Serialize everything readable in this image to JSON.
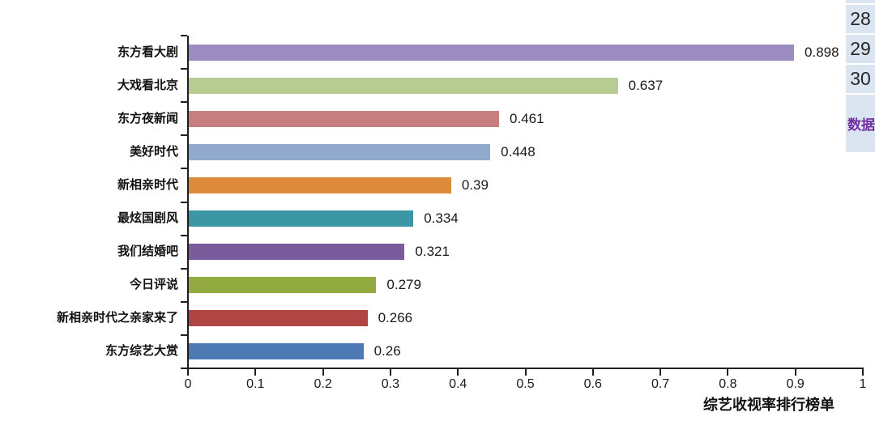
{
  "chart_data": {
    "type": "bar",
    "orientation": "horizontal",
    "title": "",
    "xlabel": "综艺收视率排行榜单",
    "ylabel": "",
    "categories": [
      "东方看大剧",
      "大戏看北京",
      "东方夜新闻",
      "美好时代",
      "新相亲时代",
      "最炫国剧风",
      "我们结婚吧",
      "今日评说",
      "新相亲时代之亲家来了",
      "东方综艺大赏"
    ],
    "values": [
      0.898,
      0.637,
      0.461,
      0.448,
      0.39,
      0.334,
      0.321,
      0.279,
      0.266,
      0.26
    ],
    "value_labels": [
      "0.898",
      "0.637",
      "0.461",
      "0.448",
      "0.39",
      "0.334",
      "0.321",
      "0.279",
      "0.266",
      "0.26"
    ],
    "bar_colors": [
      "#9c8dc0",
      "#b7cb92",
      "#c87d7f",
      "#92a9ce",
      "#dd8b38",
      "#3c97a4",
      "#7a5b9c",
      "#93aa41",
      "#b04544",
      "#4d79b4"
    ],
    "xlim": [
      0,
      1
    ],
    "x_ticks": [
      "0",
      "0.1",
      "0.2",
      "0.3",
      "0.4",
      "0.5",
      "0.6",
      "0.7",
      "0.8",
      "0.9",
      "1"
    ],
    "grid": false,
    "legend": false,
    "axis_color": "#1f1f1f",
    "text_color": "#1a1a1a"
  },
  "spreadsheet": {
    "row_numbers": [
      "28",
      "29",
      "30"
    ],
    "cell_text": "数据",
    "bg_color": "#dbe5f1",
    "row_number_color": "#262626",
    "cell_text_color": "#7030a0"
  }
}
